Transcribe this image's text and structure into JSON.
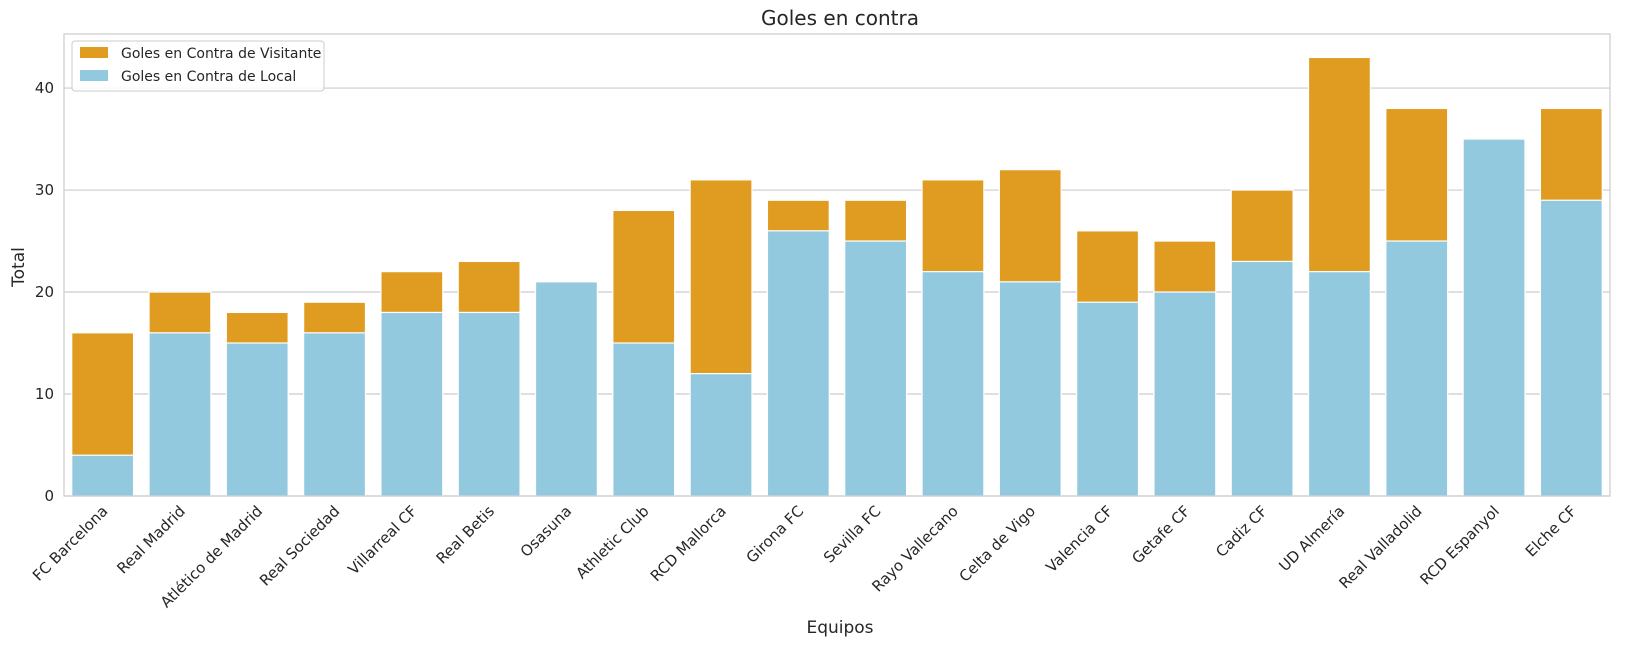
{
  "chart_data": {
    "type": "bar",
    "stacked": "overlay",
    "title": "Goles en contra",
    "xlabel": "Equipos",
    "ylabel": "Total",
    "ylim": [
      0,
      45.3
    ],
    "yticks": [
      0,
      10,
      20,
      30,
      40
    ],
    "grid": true,
    "legend_position": "top-left",
    "categories": [
      "FC Barcelona",
      "Real Madrid",
      "Atlético de Madrid",
      "Real Sociedad",
      "Villarreal CF",
      "Real Betis",
      "Osasuna",
      "Athletic Club",
      "RCD Mallorca",
      "Girona FC",
      "Sevilla FC",
      "Rayo Vallecano",
      "Celta de Vigo",
      "Valencia CF",
      "Getafe CF",
      "Cadiz CF",
      "UD Almería",
      "Real Valladolid",
      "RCD Espanyol",
      "Elche CF"
    ],
    "series": [
      {
        "name": "Goles en Contra de Visitante",
        "color": "#e09c21",
        "values": [
          16,
          20,
          18,
          19,
          22,
          23,
          20,
          28,
          31,
          29,
          29,
          31,
          32,
          26,
          25,
          30,
          43,
          38,
          34,
          38
        ]
      },
      {
        "name": "Goles en Contra de Local",
        "color": "#93c9df",
        "values": [
          4,
          16,
          15,
          16,
          18,
          18,
          21,
          15,
          12,
          26,
          25,
          22,
          21,
          19,
          20,
          23,
          22,
          25,
          35,
          29
        ]
      }
    ]
  }
}
